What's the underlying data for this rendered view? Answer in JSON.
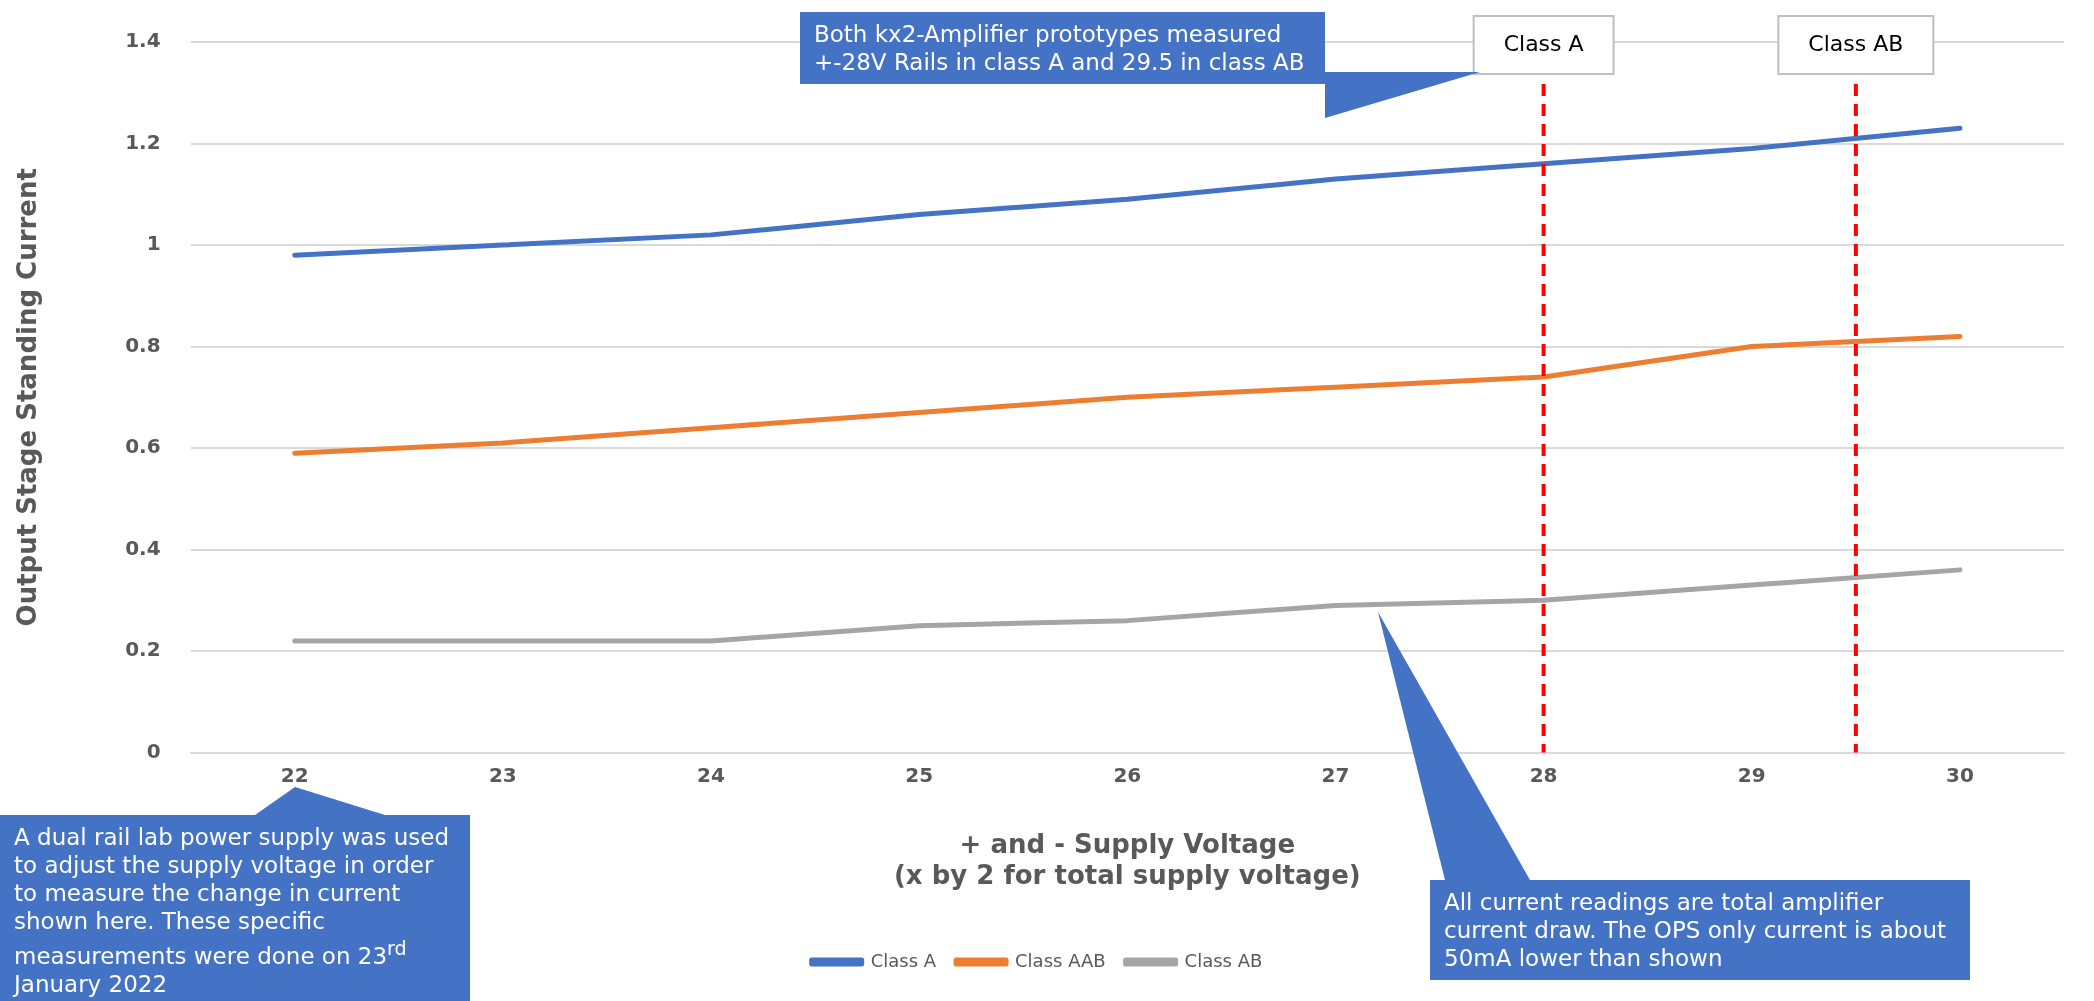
{
  "chart_data": {
    "type": "line",
    "xlabel": "+ and - Supply Voltage\n(x by 2 for total supply voltage)",
    "ylabel": "Output Stage Standing Current",
    "x": [
      22,
      23,
      24,
      25,
      26,
      27,
      28,
      29,
      30
    ],
    "series": [
      {
        "name": "Class A",
        "color": "#4472c4",
        "values": [
          0.98,
          1.0,
          1.02,
          1.06,
          1.09,
          1.13,
          1.16,
          1.19,
          1.23
        ]
      },
      {
        "name": "Class AAB",
        "color": "#ed7d31",
        "values": [
          0.59,
          0.61,
          0.64,
          0.67,
          0.7,
          0.72,
          0.74,
          0.8,
          0.82
        ]
      },
      {
        "name": "Class AB",
        "color": "#a5a5a5",
        "values": [
          0.22,
          0.22,
          0.22,
          0.25,
          0.26,
          0.29,
          0.3,
          0.33,
          0.36
        ]
      }
    ],
    "xlim": [
      21.5,
      30.5
    ],
    "xticks": [
      22,
      23,
      24,
      25,
      26,
      27,
      28,
      29,
      30
    ],
    "ylim": [
      0,
      1.4
    ],
    "yticks": [
      0,
      0.2,
      0.4,
      0.6,
      0.8,
      1,
      1.2,
      1.4
    ],
    "grid": "y",
    "legend": "bottom",
    "marker": "none",
    "line_style": "solid",
    "ref_lines": [
      {
        "axis": "x",
        "value": 28,
        "label": "Class A",
        "color": "#ff0000",
        "line_style": "dashed"
      },
      {
        "axis": "x",
        "value": 29.5,
        "label": "Class AB",
        "color": "#ff0000",
        "line_style": "dashed"
      }
    ],
    "annotations": [
      "A dual rail lab power supply was used to adjust the supply voltage in order to measure the change in current shown here. These specific measurements were done on  23$^{rd}$ January 2022",
      "Both kx2-Amplifier prototypes measured +-28V Rails in class A and 29.5 in class AB",
      "All current readings are total amplifier current draw. The OPS only current is about 50mA lower than shown"
    ]
  }
}
